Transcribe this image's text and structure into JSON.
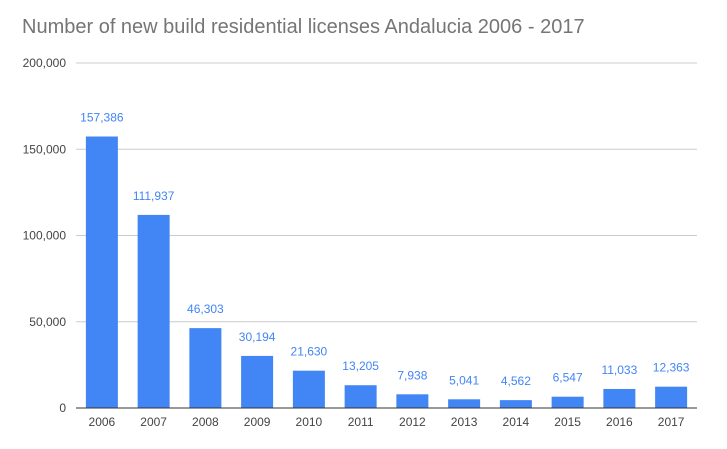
{
  "chart_data": {
    "type": "bar",
    "title": "Number of new build residential licenses Andalucia 2006 - 2017",
    "xlabel": "",
    "ylabel": "",
    "categories": [
      "2006",
      "2007",
      "2008",
      "2009",
      "2010",
      "2011",
      "2012",
      "2013",
      "2014",
      "2015",
      "2016",
      "2017"
    ],
    "values": [
      157386,
      111937,
      46303,
      30194,
      21630,
      13205,
      7938,
      5041,
      4562,
      6547,
      11033,
      12363
    ],
    "data_labels": [
      "157,386",
      "111,937",
      "46,303",
      "30,194",
      "21,630",
      "13,205",
      "7,938",
      "5,041",
      "4,562",
      "6,547",
      "11,033",
      "12,363"
    ],
    "ylim": [
      0,
      200000
    ],
    "y_ticks": [
      0,
      50000,
      100000,
      150000,
      200000
    ],
    "y_tick_labels": [
      "0",
      "50,000",
      "100,000",
      "150,000",
      "200,000"
    ],
    "grid": true,
    "legend": "none",
    "bar_color": "#4285f4",
    "data_label_color": "#4285f4",
    "gridline_color": "#cccccc",
    "baseline_color": "#333333",
    "title_color": "#757575"
  }
}
